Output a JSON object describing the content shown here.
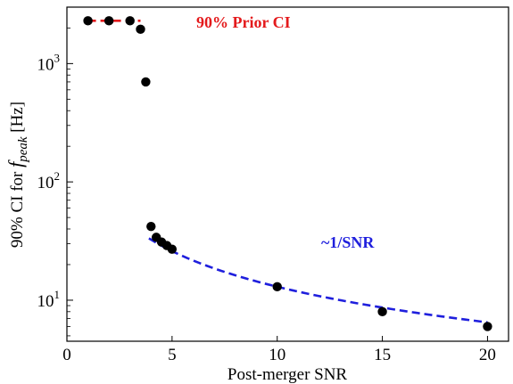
{
  "chart_data": {
    "type": "scatter",
    "xlabel": "Post-merger SNR",
    "ylabel_prefix": "90% CI for ",
    "ylabel_italic": "f",
    "ylabel_sub": "peak",
    "ylabel_suffix": " [Hz]",
    "xlim": [
      0,
      21
    ],
    "ylim": [
      4.5,
      3000
    ],
    "yscale": "log",
    "grid": false,
    "x_ticks": [
      0,
      5,
      10,
      15,
      20
    ],
    "x_tick_labels": [
      "0",
      "5",
      "10",
      "15",
      "20"
    ],
    "y_ticks": [
      10,
      100,
      1000
    ],
    "y_tick_base": "10",
    "y_tick_exponents": [
      "1",
      "2",
      "3"
    ],
    "points": {
      "color": "#000000",
      "x": [
        1,
        2,
        3,
        3.5,
        3.75,
        4,
        4.25,
        4.5,
        4.75,
        5,
        10,
        15,
        20
      ],
      "y": [
        2300,
        2300,
        2300,
        1950,
        700,
        42,
        34,
        31,
        29,
        27,
        13,
        8,
        6
      ]
    },
    "prior_line": {
      "color": "#e41a1c",
      "style": "dashed",
      "x": [
        1,
        3.5
      ],
      "y": [
        2300,
        2300
      ],
      "label": "90% Prior CI"
    },
    "fit_line": {
      "color": "#1f1fdd",
      "style": "dashed",
      "x_start": 3.9,
      "x_end": 20,
      "coef": 130,
      "label": "~1/SNR"
    }
  }
}
